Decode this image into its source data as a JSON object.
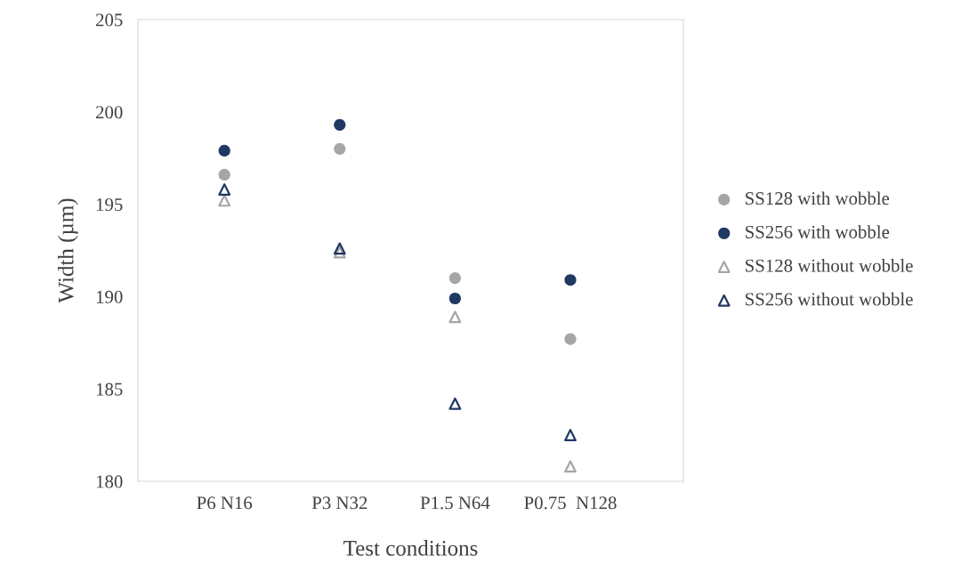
{
  "chart_data": {
    "type": "scatter",
    "xlabel": "Test conditions",
    "ylabel": "Width (µm)",
    "categories": [
      "P6 N16",
      "P3 N32",
      "P1.5 N64",
      "P0.75  N128"
    ],
    "ylim": [
      180,
      205
    ],
    "yticks": [
      180,
      185,
      190,
      195,
      200,
      205
    ],
    "grid": false,
    "legend": "right",
    "series": [
      {
        "name": "SS128 with wobble",
        "color": "#a6a6a6",
        "marker": "circle",
        "values": [
          196.6,
          198.0,
          191.0,
          187.7
        ]
      },
      {
        "name": "SS256 with wobble",
        "color": "#1f3864",
        "marker": "circle",
        "values": [
          197.9,
          199.3,
          189.9,
          190.9
        ]
      },
      {
        "name": "SS128 without wobble",
        "color": "#a6a6a6",
        "marker": "triangle",
        "values": [
          195.2,
          192.4,
          188.9,
          180.8
        ]
      },
      {
        "name": "SS256 without wobble",
        "color": "#1f3864",
        "marker": "triangle",
        "values": [
          195.8,
          192.6,
          184.2,
          182.5
        ]
      }
    ]
  }
}
